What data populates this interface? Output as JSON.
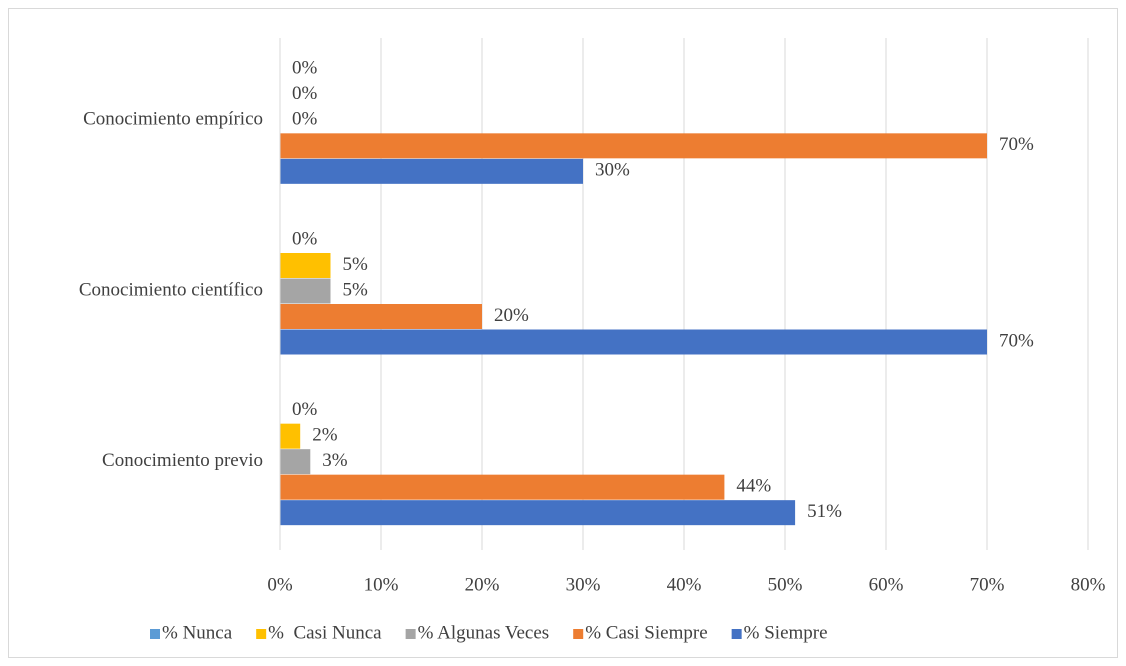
{
  "chart_data": {
    "type": "hbar",
    "categories": [
      "Conocimiento empírico",
      "Conocimiento científico",
      "Conocimiento previo"
    ],
    "series": [
      {
        "name": "% Nunca",
        "color": "#5b9bd5",
        "values": [
          0,
          0,
          0
        ],
        "value_labels": [
          "0%",
          "0%",
          "0%"
        ]
      },
      {
        "name": "%  Casi Nunca",
        "color": "#ffc000",
        "values": [
          0,
          5,
          2
        ],
        "value_labels": [
          "0%",
          "5%",
          "2%"
        ]
      },
      {
        "name": "% Algunas Veces",
        "color": "#a5a5a5",
        "values": [
          0,
          5,
          3
        ],
        "value_labels": [
          "0%",
          "5%",
          "3%"
        ]
      },
      {
        "name": "% Casi Siempre",
        "color": "#ed7d31",
        "values": [
          70,
          20,
          44
        ],
        "value_labels": [
          "70%",
          "20%",
          "44%"
        ]
      },
      {
        "name": "% Siempre",
        "color": "#4472c4",
        "values": [
          30,
          70,
          51
        ],
        "value_labels": [
          "30%",
          "70%",
          "51%"
        ]
      }
    ],
    "xlim": [
      0,
      80
    ],
    "xticks": [
      {
        "value": 0,
        "label": "0%"
      },
      {
        "value": 10,
        "label": "10%"
      },
      {
        "value": 20,
        "label": "20%"
      },
      {
        "value": 30,
        "label": "30%"
      },
      {
        "value": 40,
        "label": "40%"
      },
      {
        "value": 50,
        "label": "50%"
      },
      {
        "value": 60,
        "label": "60%"
      },
      {
        "value": 70,
        "label": "70%"
      },
      {
        "value": 80,
        "label": "80%"
      }
    ],
    "grid": true,
    "legend": "bottom"
  }
}
